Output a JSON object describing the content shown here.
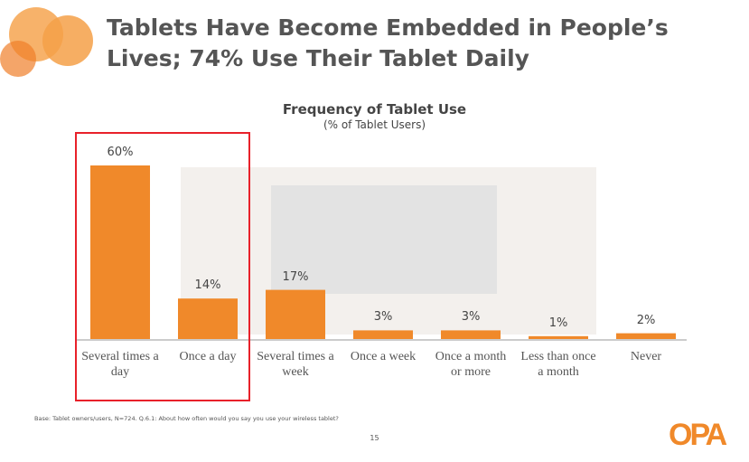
{
  "slide": {
    "title": "Tablets Have Become Embedded in People’s Lives; 74% Use Their Tablet Daily",
    "footnote": "Base: Tablet owners/users, N=724. Q.6.1: About how often would you say you use your wireless tablet?",
    "page_number": "15",
    "logo": "OPA"
  },
  "chart_data": {
    "type": "bar",
    "title": "Frequency of Tablet Use",
    "subtitle": "(% of Tablet Users)",
    "categories": [
      "Several times a day",
      "Once a day",
      "Several times a week",
      "Once a week",
      "Once a month or more",
      "Less than once a month",
      "Never"
    ],
    "values": [
      60,
      14,
      17,
      3,
      3,
      1,
      2
    ],
    "value_labels": [
      "60%",
      "14%",
      "17%",
      "3%",
      "3%",
      "1%",
      "2%"
    ],
    "color": "#f0892a"
  }
}
